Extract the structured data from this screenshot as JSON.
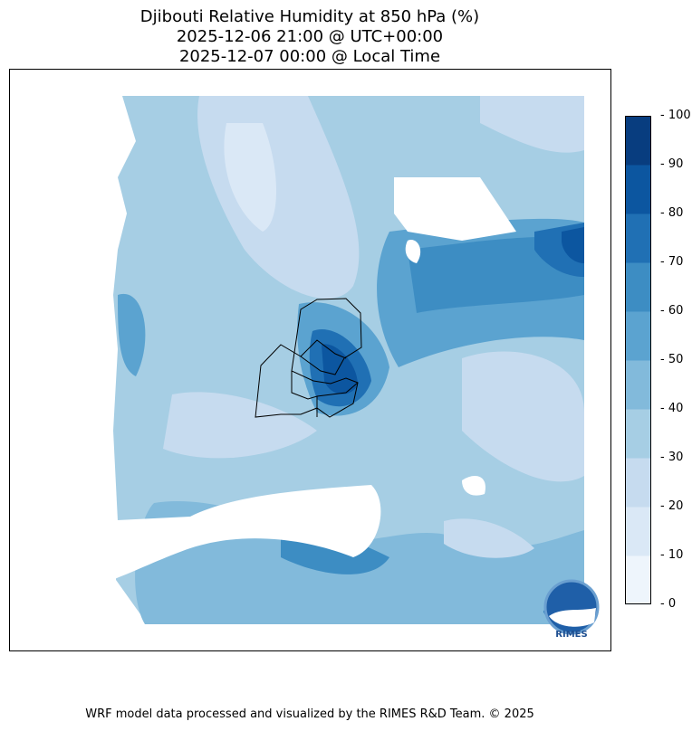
{
  "title": {
    "line1": "Djibouti Relative Humidity at 850 hPa (%)",
    "line2": "2025-12-06 21:00 @ UTC+00:00",
    "line3": "2025-12-07 00:00 @ Local Time"
  },
  "colorbar": {
    "ticks": [
      "0",
      "10",
      "20",
      "30",
      "40",
      "50",
      "60",
      "70",
      "80",
      "90",
      "100"
    ],
    "colors": [
      "#eef5fc",
      "#dae8f6",
      "#c6dbef",
      "#a6cee4",
      "#82badb",
      "#5ba3d0",
      "#3d8dc3",
      "#2070b4",
      "#0c56a0",
      "#083d7f"
    ],
    "colormap": "Blues"
  },
  "logo": {
    "text": "RIMES"
  },
  "credit": "WRF model data processed and visualized by the RIMES R&D Team. © 2025"
}
